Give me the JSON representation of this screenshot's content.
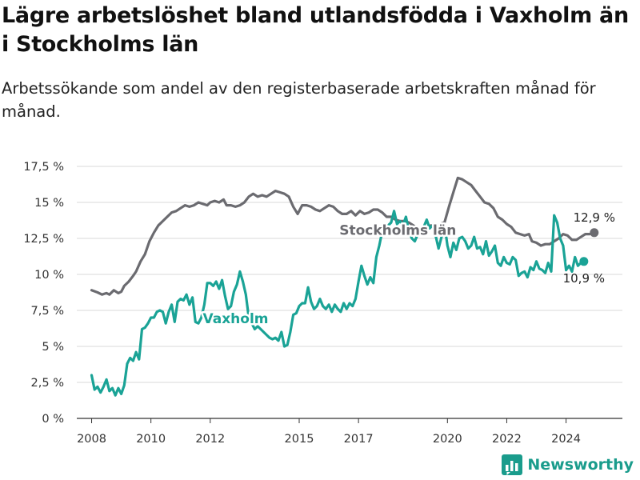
{
  "title": "Lägre arbetslöshet bland utlandsfödda i Vaxholm än i Stockholms län",
  "subtitle": "Arbetssökande som andel av den registerbaserade arbetskraften månad för månad.",
  "brand": {
    "name": "Newsworthy",
    "icon": "newsworthy-logo-icon",
    "color": "#1a9c8c"
  },
  "chart_data": {
    "type": "line",
    "x_unit": "year",
    "y_unit": "percent",
    "ylim": [
      0,
      17.5
    ],
    "xlim": [
      2007.5,
      2025.9
    ],
    "y_ticks": [
      0,
      2.5,
      5,
      7.5,
      10,
      12.5,
      15,
      17.5
    ],
    "y_tick_labels": [
      "0 %",
      "2,5 %",
      "5 %",
      "7,5 %",
      "10 %",
      "12,5 %",
      "15 %",
      "17,5 %"
    ],
    "x_ticks": [
      2008,
      2010,
      2012,
      2015,
      2017,
      2020,
      2022,
      2024
    ],
    "x_tick_labels": [
      "2008",
      "2010",
      "2012",
      "2015",
      "2017",
      "2020",
      "2022",
      "2024"
    ],
    "grid": true,
    "series": [
      {
        "name": "Stockholms län",
        "color": "#6b6b70",
        "end_label": "12,9 %",
        "points": [
          [
            2008.0,
            8.9
          ],
          [
            2008.2,
            8.75
          ],
          [
            2008.35,
            8.6
          ],
          [
            2008.5,
            8.7
          ],
          [
            2008.6,
            8.6
          ],
          [
            2008.75,
            8.9
          ],
          [
            2008.9,
            8.7
          ],
          [
            2009.0,
            8.8
          ],
          [
            2009.1,
            9.2
          ],
          [
            2009.25,
            9.5
          ],
          [
            2009.4,
            9.9
          ],
          [
            2009.5,
            10.2
          ],
          [
            2009.65,
            10.9
          ],
          [
            2009.8,
            11.4
          ],
          [
            2009.95,
            12.3
          ],
          [
            2010.1,
            12.9
          ],
          [
            2010.25,
            13.4
          ],
          [
            2010.4,
            13.7
          ],
          [
            2010.55,
            14.0
          ],
          [
            2010.7,
            14.3
          ],
          [
            2010.85,
            14.4
          ],
          [
            2011.0,
            14.6
          ],
          [
            2011.15,
            14.8
          ],
          [
            2011.3,
            14.7
          ],
          [
            2011.45,
            14.8
          ],
          [
            2011.6,
            15.0
          ],
          [
            2011.75,
            14.9
          ],
          [
            2011.9,
            14.8
          ],
          [
            2012.0,
            15.0
          ],
          [
            2012.15,
            15.1
          ],
          [
            2012.3,
            15.0
          ],
          [
            2012.45,
            15.2
          ],
          [
            2012.55,
            14.8
          ],
          [
            2012.7,
            14.8
          ],
          [
            2012.85,
            14.7
          ],
          [
            2013.0,
            14.8
          ],
          [
            2013.15,
            15.0
          ],
          [
            2013.3,
            15.4
          ],
          [
            2013.45,
            15.6
          ],
          [
            2013.6,
            15.4
          ],
          [
            2013.75,
            15.5
          ],
          [
            2013.9,
            15.4
          ],
          [
            2014.05,
            15.6
          ],
          [
            2014.2,
            15.8
          ],
          [
            2014.35,
            15.7
          ],
          [
            2014.5,
            15.6
          ],
          [
            2014.65,
            15.4
          ],
          [
            2014.8,
            14.7
          ],
          [
            2014.95,
            14.2
          ],
          [
            2015.1,
            14.8
          ],
          [
            2015.25,
            14.8
          ],
          [
            2015.4,
            14.7
          ],
          [
            2015.55,
            14.5
          ],
          [
            2015.7,
            14.4
          ],
          [
            2015.85,
            14.6
          ],
          [
            2016.0,
            14.8
          ],
          [
            2016.15,
            14.7
          ],
          [
            2016.3,
            14.4
          ],
          [
            2016.45,
            14.2
          ],
          [
            2016.6,
            14.2
          ],
          [
            2016.75,
            14.4
          ],
          [
            2016.9,
            14.1
          ],
          [
            2017.05,
            14.4
          ],
          [
            2017.2,
            14.2
          ],
          [
            2017.35,
            14.3
          ],
          [
            2017.5,
            14.5
          ],
          [
            2017.65,
            14.5
          ],
          [
            2017.8,
            14.3
          ],
          [
            2017.95,
            14.0
          ],
          [
            2018.1,
            14.0
          ],
          [
            2018.25,
            13.8
          ],
          [
            2018.4,
            13.7
          ],
          [
            2018.55,
            13.7
          ],
          [
            2018.7,
            13.6
          ],
          [
            2018.85,
            13.4
          ],
          [
            2019.0,
            13.2
          ],
          [
            2019.15,
            13.1
          ],
          [
            2019.3,
            13.3
          ],
          [
            2019.45,
            13.4
          ],
          [
            2019.6,
            13.3
          ],
          [
            2019.75,
            13.5
          ],
          [
            2019.9,
            13.6
          ],
          [
            2020.05,
            14.7
          ],
          [
            2020.2,
            15.7
          ],
          [
            2020.35,
            16.7
          ],
          [
            2020.5,
            16.6
          ],
          [
            2020.65,
            16.4
          ],
          [
            2020.8,
            16.2
          ],
          [
            2020.95,
            15.8
          ],
          [
            2021.1,
            15.4
          ],
          [
            2021.25,
            15.0
          ],
          [
            2021.4,
            14.9
          ],
          [
            2021.55,
            14.6
          ],
          [
            2021.7,
            14.0
          ],
          [
            2021.85,
            13.8
          ],
          [
            2022.0,
            13.5
          ],
          [
            2022.15,
            13.3
          ],
          [
            2022.3,
            12.9
          ],
          [
            2022.45,
            12.8
          ],
          [
            2022.6,
            12.7
          ],
          [
            2022.75,
            12.8
          ],
          [
            2022.85,
            12.3
          ],
          [
            2023.0,
            12.2
          ],
          [
            2023.15,
            12.0
          ],
          [
            2023.3,
            12.1
          ],
          [
            2023.45,
            12.1
          ],
          [
            2023.6,
            12.3
          ],
          [
            2023.75,
            12.5
          ],
          [
            2023.9,
            12.8
          ],
          [
            2024.05,
            12.7
          ],
          [
            2024.2,
            12.4
          ],
          [
            2024.35,
            12.4
          ],
          [
            2024.5,
            12.6
          ],
          [
            2024.65,
            12.8
          ],
          [
            2024.8,
            12.8
          ],
          [
            2024.95,
            12.9
          ]
        ]
      },
      {
        "name": "Vaxholm",
        "color": "#1aa396",
        "end_label": "10,9 %",
        "points": [
          [
            2008.0,
            3.0
          ],
          [
            2008.1,
            2.0
          ],
          [
            2008.2,
            2.2
          ],
          [
            2008.3,
            1.8
          ],
          [
            2008.4,
            2.2
          ],
          [
            2008.5,
            2.7
          ],
          [
            2008.6,
            1.9
          ],
          [
            2008.7,
            2.1
          ],
          [
            2008.8,
            1.6
          ],
          [
            2008.9,
            2.1
          ],
          [
            2009.0,
            1.7
          ],
          [
            2009.1,
            2.3
          ],
          [
            2009.2,
            3.8
          ],
          [
            2009.3,
            4.2
          ],
          [
            2009.4,
            4.0
          ],
          [
            2009.5,
            4.6
          ],
          [
            2009.6,
            4.1
          ],
          [
            2009.7,
            6.2
          ],
          [
            2009.8,
            6.3
          ],
          [
            2009.9,
            6.6
          ],
          [
            2010.0,
            7.0
          ],
          [
            2010.1,
            7.0
          ],
          [
            2010.2,
            7.4
          ],
          [
            2010.3,
            7.5
          ],
          [
            2010.4,
            7.4
          ],
          [
            2010.5,
            6.6
          ],
          [
            2010.6,
            7.4
          ],
          [
            2010.7,
            7.9
          ],
          [
            2010.8,
            6.7
          ],
          [
            2010.9,
            8.1
          ],
          [
            2011.0,
            8.3
          ],
          [
            2011.1,
            8.2
          ],
          [
            2011.2,
            8.6
          ],
          [
            2011.3,
            7.9
          ],
          [
            2011.4,
            8.4
          ],
          [
            2011.5,
            6.7
          ],
          [
            2011.6,
            6.6
          ],
          [
            2011.7,
            7.0
          ],
          [
            2011.8,
            7.9
          ],
          [
            2011.9,
            9.4
          ],
          [
            2012.0,
            9.4
          ],
          [
            2012.1,
            9.2
          ],
          [
            2012.2,
            9.5
          ],
          [
            2012.3,
            9.0
          ],
          [
            2012.4,
            9.6
          ],
          [
            2012.5,
            8.5
          ],
          [
            2012.6,
            7.6
          ],
          [
            2012.7,
            7.8
          ],
          [
            2012.8,
            8.8
          ],
          [
            2012.9,
            9.3
          ],
          [
            2013.0,
            10.2
          ],
          [
            2013.1,
            9.5
          ],
          [
            2013.2,
            8.6
          ],
          [
            2013.3,
            7.0
          ],
          [
            2013.4,
            6.6
          ],
          [
            2013.5,
            6.2
          ],
          [
            2013.6,
            6.4
          ],
          [
            2013.7,
            6.2
          ],
          [
            2013.8,
            6.0
          ],
          [
            2013.9,
            5.8
          ],
          [
            2014.0,
            5.6
          ],
          [
            2014.1,
            5.5
          ],
          [
            2014.2,
            5.6
          ],
          [
            2014.3,
            5.4
          ],
          [
            2014.4,
            6.0
          ],
          [
            2014.5,
            5.0
          ],
          [
            2014.6,
            5.1
          ],
          [
            2014.7,
            6.0
          ],
          [
            2014.8,
            7.2
          ],
          [
            2014.9,
            7.3
          ],
          [
            2015.0,
            7.8
          ],
          [
            2015.1,
            8.0
          ],
          [
            2015.2,
            8.0
          ],
          [
            2015.3,
            9.1
          ],
          [
            2015.4,
            8.1
          ],
          [
            2015.5,
            7.6
          ],
          [
            2015.6,
            7.8
          ],
          [
            2015.7,
            8.3
          ],
          [
            2015.8,
            7.8
          ],
          [
            2015.9,
            7.6
          ],
          [
            2016.0,
            7.9
          ],
          [
            2016.1,
            7.4
          ],
          [
            2016.2,
            7.9
          ],
          [
            2016.3,
            7.6
          ],
          [
            2016.4,
            7.4
          ],
          [
            2016.5,
            8.0
          ],
          [
            2016.6,
            7.6
          ],
          [
            2016.7,
            8.0
          ],
          [
            2016.8,
            7.8
          ],
          [
            2016.9,
            8.3
          ],
          [
            2017.0,
            9.5
          ],
          [
            2017.1,
            10.6
          ],
          [
            2017.2,
            9.9
          ],
          [
            2017.3,
            9.3
          ],
          [
            2017.4,
            9.8
          ],
          [
            2017.5,
            9.4
          ],
          [
            2017.6,
            11.2
          ],
          [
            2017.7,
            12.0
          ],
          [
            2017.8,
            13.0
          ],
          [
            2017.9,
            13.2
          ],
          [
            2018.0,
            13.4
          ],
          [
            2018.1,
            13.6
          ],
          [
            2018.2,
            14.4
          ],
          [
            2018.3,
            13.5
          ],
          [
            2018.4,
            13.7
          ],
          [
            2018.5,
            13.4
          ],
          [
            2018.6,
            14.0
          ],
          [
            2018.7,
            13.0
          ],
          [
            2018.8,
            12.5
          ],
          [
            2018.9,
            12.3
          ],
          [
            2019.0,
            12.8
          ],
          [
            2019.1,
            12.9
          ],
          [
            2019.2,
            13.3
          ],
          [
            2019.3,
            13.8
          ],
          [
            2019.4,
            13.2
          ],
          [
            2019.5,
            13.4
          ],
          [
            2019.6,
            12.7
          ],
          [
            2019.7,
            11.8
          ],
          [
            2019.8,
            12.6
          ],
          [
            2019.9,
            13.5
          ],
          [
            2020.0,
            12.0
          ],
          [
            2020.1,
            11.2
          ],
          [
            2020.2,
            12.2
          ],
          [
            2020.3,
            11.7
          ],
          [
            2020.4,
            12.5
          ],
          [
            2020.5,
            12.6
          ],
          [
            2020.6,
            12.3
          ],
          [
            2020.7,
            11.8
          ],
          [
            2020.8,
            12.0
          ],
          [
            2020.9,
            12.6
          ],
          [
            2021.0,
            11.8
          ],
          [
            2021.1,
            11.9
          ],
          [
            2021.2,
            11.4
          ],
          [
            2021.3,
            12.3
          ],
          [
            2021.4,
            11.3
          ],
          [
            2021.5,
            11.6
          ],
          [
            2021.6,
            12.0
          ],
          [
            2021.7,
            10.8
          ],
          [
            2021.8,
            10.6
          ],
          [
            2021.9,
            11.2
          ],
          [
            2022.0,
            10.8
          ],
          [
            2022.1,
            10.7
          ],
          [
            2022.2,
            11.2
          ],
          [
            2022.3,
            11.0
          ],
          [
            2022.4,
            9.9
          ],
          [
            2022.5,
            10.1
          ],
          [
            2022.6,
            10.2
          ],
          [
            2022.7,
            9.8
          ],
          [
            2022.8,
            10.5
          ],
          [
            2022.9,
            10.3
          ],
          [
            2023.0,
            10.9
          ],
          [
            2023.1,
            10.4
          ],
          [
            2023.2,
            10.3
          ],
          [
            2023.3,
            10.1
          ],
          [
            2023.4,
            10.8
          ],
          [
            2023.5,
            10.2
          ],
          [
            2023.6,
            14.1
          ],
          [
            2023.7,
            13.6
          ],
          [
            2023.8,
            12.5
          ],
          [
            2023.9,
            12.0
          ],
          [
            2024.0,
            10.3
          ],
          [
            2024.1,
            10.6
          ],
          [
            2024.2,
            10.2
          ],
          [
            2024.3,
            11.2
          ],
          [
            2024.4,
            10.6
          ],
          [
            2024.5,
            10.8
          ],
          [
            2024.6,
            10.9
          ]
        ]
      }
    ]
  }
}
